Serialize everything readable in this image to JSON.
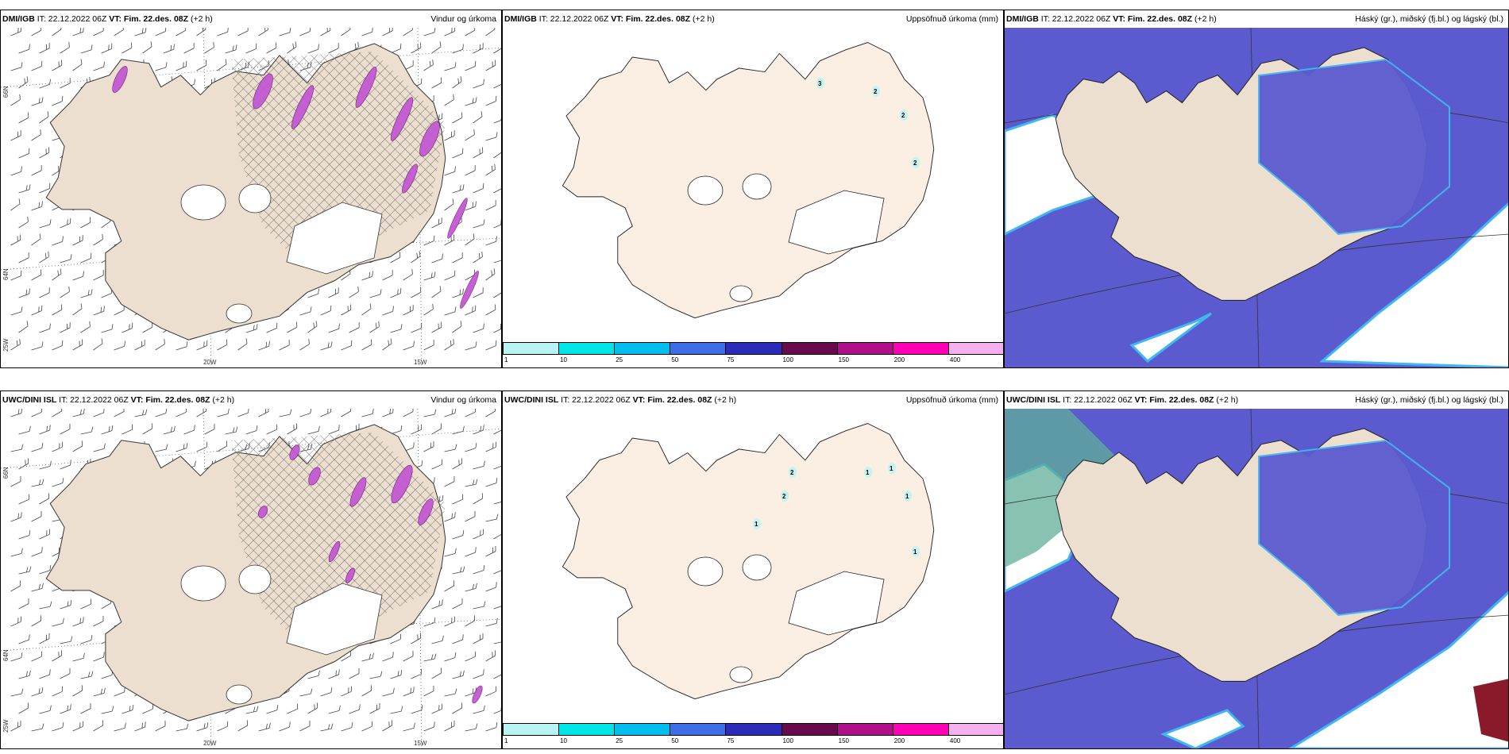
{
  "colors": {
    "land": "#ecdfcf",
    "land_precip_map": "#fbeee2",
    "sea_blue": "#5b5bcf",
    "sea_light": "#3fb8f2",
    "precip_purple": "#c259d1",
    "hatch": "#555555"
  },
  "panels": [
    {
      "row": "top",
      "model": "DMI/IGB",
      "it": "IT: 22.12.2022 06Z",
      "vt": "VT: Fim. 22.des. 08Z",
      "lead": "(+2 h)",
      "title_right": "Vindur og úrkoma",
      "kind": "wind"
    },
    {
      "row": "top",
      "model": "DMI/IGB",
      "it": "IT: 22.12.2022 06Z",
      "vt": "VT: Fim. 22.des. 08Z",
      "lead": "(+2 h)",
      "title_right": "Uppsöfnuð úrkoma (mm)",
      "kind": "accum"
    },
    {
      "row": "top",
      "model": "DMI/IGB",
      "it": "IT: 22.12.2022 06Z",
      "vt": "VT: Fim. 22.des. 08Z",
      "lead": "(+2 h)",
      "title_right": "Háský (gr.), miðský (fj.bl.) og lágský (bl.)",
      "kind": "cloud"
    },
    {
      "row": "bottom",
      "model": "UWC/DINI ISL",
      "it": "IT: 22.12.2022 06Z",
      "vt": "VT: Fim. 22.des. 08Z",
      "lead": "(+2 h)",
      "title_right": "Vindur og úrkoma",
      "kind": "wind"
    },
    {
      "row": "bottom",
      "model": "UWC/DINI ISL",
      "it": "IT: 22.12.2022 06Z",
      "vt": "VT: Fim. 22.des. 08Z",
      "lead": "(+2 h)",
      "title_right": "Uppsöfnuð úrkoma (mm)",
      "kind": "accum"
    },
    {
      "row": "bottom",
      "model": "UWC/DINI ISL",
      "it": "IT: 22.12.2022 06Z",
      "vt": "VT: Fim. 22.des. 08Z",
      "lead": "(+2 h)",
      "title_right": "Háský (gr.), miðský (fj.bl.) og lágský (bl.)",
      "kind": "cloud"
    }
  ],
  "axis_labels": {
    "lon_20w": "20W",
    "lon_15w": "15W",
    "lat_66n": "66N",
    "lat_64n": "64N",
    "lat_25w": "25W"
  },
  "colorbar": {
    "ticks": [
      "1",
      "10",
      "25",
      "50",
      "75",
      "100",
      "150",
      "200",
      "400"
    ],
    "colors": [
      "#b8f4f4",
      "#00e5e5",
      "#00bfef",
      "#3d6ee8",
      "#2b2bb8",
      "#6a0a4e",
      "#b00f8a",
      "#ff00b4",
      "#f5b0f0"
    ]
  },
  "accum_labels_top": [
    "3",
    "2",
    "2",
    "2"
  ],
  "accum_labels_bottom": [
    "2",
    "1",
    "1",
    "2",
    "1",
    "1",
    "1"
  ]
}
